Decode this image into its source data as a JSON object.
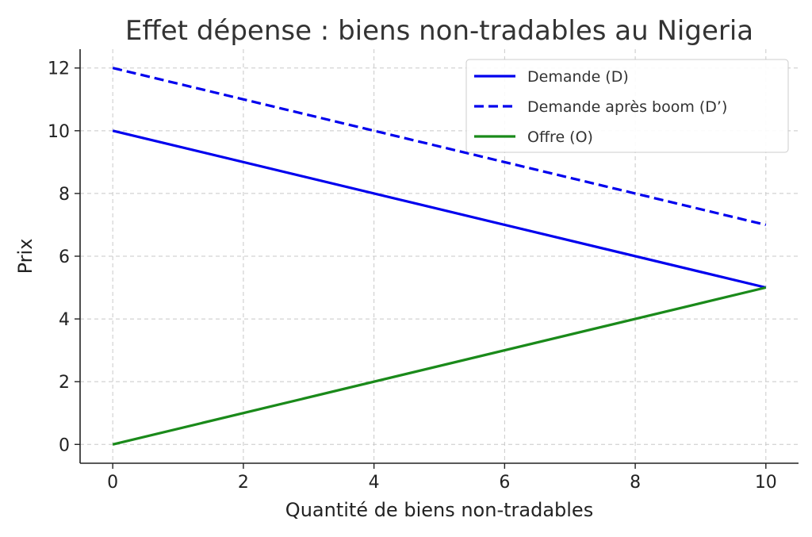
{
  "chart_data": {
    "type": "line",
    "title": "Effet dépense : biens non-tradables au Nigeria",
    "xlabel": "Quantité de biens non-tradables",
    "ylabel": "Prix",
    "xlim": [
      -0.5,
      10.5
    ],
    "ylim": [
      -0.6,
      12.6
    ],
    "xticks": [
      0,
      2,
      4,
      6,
      8,
      10
    ],
    "yticks": [
      0,
      2,
      4,
      6,
      8,
      10,
      12
    ],
    "grid": true,
    "legend_position": "top-right",
    "series": [
      {
        "name": "Demande (D)",
        "color": "#0000ee",
        "style": "solid",
        "x": [
          0,
          10
        ],
        "y": [
          10,
          5
        ]
      },
      {
        "name": "Demande après boom (D’)",
        "color": "#0000ee",
        "style": "dashed",
        "x": [
          0,
          10
        ],
        "y": [
          12,
          7
        ]
      },
      {
        "name": "Offre (O)",
        "color": "#1a8a1a",
        "style": "solid",
        "x": [
          0,
          10
        ],
        "y": [
          0,
          5
        ]
      }
    ]
  }
}
